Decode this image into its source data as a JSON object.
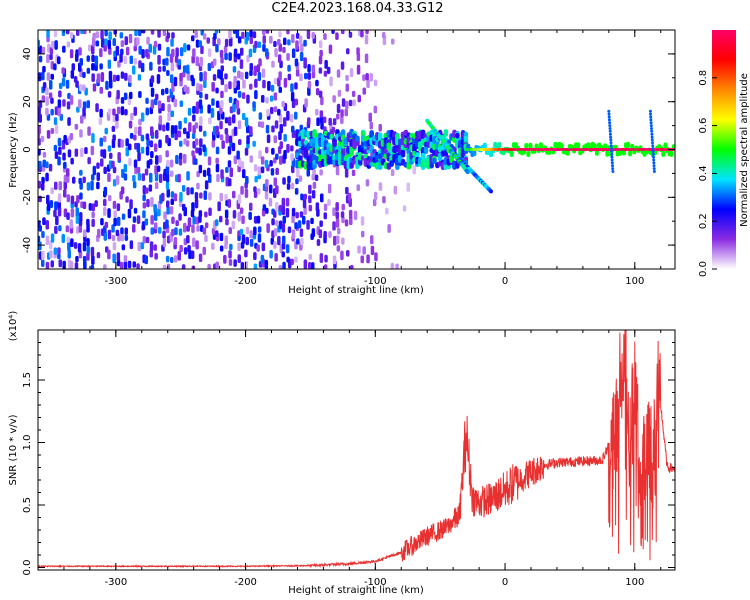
{
  "title": "C2E4.2023.168.04.33.G12",
  "chart_data": [
    {
      "type": "heatmap",
      "xlabel": "Height of straight line (km)",
      "ylabel": "Frequency (Hz)",
      "xlim": [
        -360,
        131
      ],
      "ylim": [
        -50,
        50
      ],
      "xticks": [
        -300,
        -200,
        -100,
        0,
        100
      ],
      "yticks": [
        -40,
        -20,
        0,
        20,
        40
      ],
      "colorbar": {
        "label": "Normalized spectral amplitude",
        "range": [
          0,
          1
        ],
        "ticks": [
          "0.0",
          "0.2",
          "0.4",
          "0.6",
          "0.8"
        ],
        "colormap": [
          "#ffffff",
          "#8a2be2",
          "#0000ff",
          "#00e5ff",
          "#00ff00",
          "#ffff00",
          "#ff8800",
          "#ff0000",
          "#ff0066"
        ]
      },
      "features": [
        {
          "name": "noise",
          "x_range": [
            -360,
            -100
          ],
          "freq_range": [
            -50,
            50
          ],
          "amplitude": 0.15
        },
        {
          "name": "signal_onset",
          "x_range": [
            -160,
            -30
          ],
          "freq_center": 0,
          "freq_halfwidth": 7,
          "amplitude": 0.35
        },
        {
          "name": "carrier",
          "x_range": [
            -30,
            131
          ],
          "freq_center": 0,
          "amplitude": 0.95
        }
      ]
    },
    {
      "type": "line",
      "xlabel": "Height of straight line (km)",
      "ylabel": "SNR (10 * v/v)",
      "multiplier": "(x10⁴)",
      "xlim": [
        -360,
        131
      ],
      "ylim": [
        -0.02,
        1.9
      ],
      "xticks": [
        -300,
        -200,
        -100,
        0,
        100
      ],
      "yticks": [
        0.0,
        0.5,
        1.0,
        1.5
      ],
      "ytick_labels": [
        "0.0",
        "0.5",
        "1.0",
        "1.5"
      ],
      "series": [
        {
          "color": "#e83030",
          "x": [
            -360,
            -300,
            -250,
            -200,
            -150,
            -120,
            -100,
            -80,
            -60,
            -45,
            -35,
            -30,
            -25,
            -20,
            -10,
            0,
            10,
            20,
            30,
            40,
            60,
            75,
            85,
            90,
            93,
            96,
            100,
            105,
            110,
            114,
            118,
            125,
            131
          ],
          "y": [
            0.01,
            0.01,
            0.01,
            0.01,
            0.015,
            0.03,
            0.05,
            0.12,
            0.25,
            0.32,
            0.42,
            1.08,
            0.55,
            0.52,
            0.55,
            0.62,
            0.7,
            0.76,
            0.82,
            0.84,
            0.85,
            0.86,
            1.1,
            1.6,
            1.9,
            1.0,
            1.45,
            0.5,
            1.2,
            0.75,
            1.5,
            0.8,
            0.79
          ]
        }
      ]
    }
  ]
}
